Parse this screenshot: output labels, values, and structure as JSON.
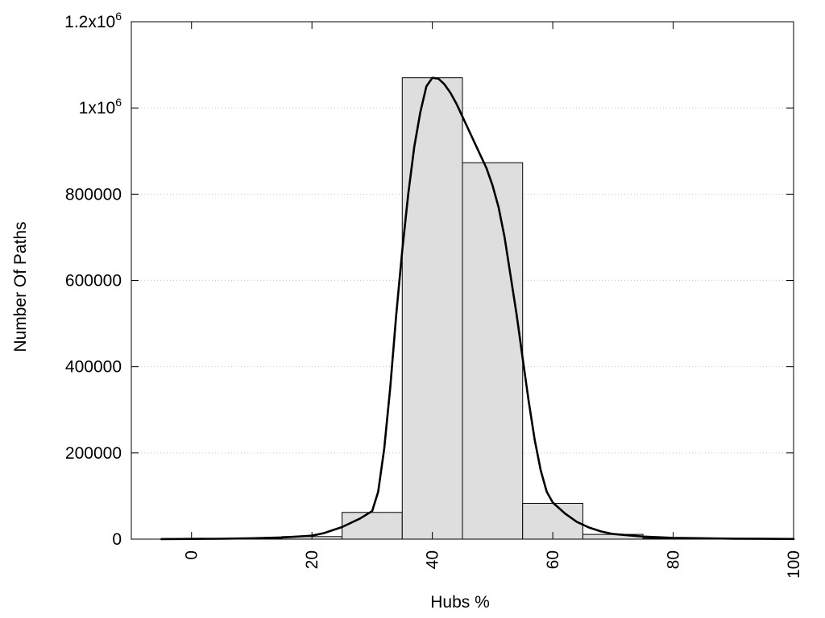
{
  "chart_data": {
    "type": "bar",
    "title": "",
    "xlabel": "Hubs %",
    "ylabel": "Number Of Paths",
    "xlim": [
      -10,
      100
    ],
    "ylim": [
      0,
      1200000
    ],
    "grid": true,
    "x_ticks": [
      {
        "value": 0,
        "label": "0"
      },
      {
        "value": 20,
        "label": "20"
      },
      {
        "value": 40,
        "label": "40"
      },
      {
        "value": 60,
        "label": "60"
      },
      {
        "value": 80,
        "label": "80"
      },
      {
        "value": 100,
        "label": "100"
      }
    ],
    "y_ticks": [
      {
        "value": 0,
        "label": "0"
      },
      {
        "value": 200000,
        "label": "200000"
      },
      {
        "value": 400000,
        "label": "400000"
      },
      {
        "value": 600000,
        "label": "600000"
      },
      {
        "value": 800000,
        "label": "800000"
      },
      {
        "value": 1000000,
        "label": "1x10",
        "sup": "6"
      },
      {
        "value": 1200000,
        "label": "1.2x10",
        "sup": "6"
      }
    ],
    "bins": [
      {
        "center": 0,
        "width": 10,
        "value": 1500
      },
      {
        "center": 10,
        "width": 10,
        "value": 1000
      },
      {
        "center": 20,
        "width": 10,
        "value": 6000
      },
      {
        "center": 30,
        "width": 10,
        "value": 62000
      },
      {
        "center": 40,
        "width": 10,
        "value": 1070000
      },
      {
        "center": 50,
        "width": 10,
        "value": 873000
      },
      {
        "center": 60,
        "width": 10,
        "value": 83000
      },
      {
        "center": 70,
        "width": 10,
        "value": 11000
      },
      {
        "center": 80,
        "width": 10,
        "value": 2000
      },
      {
        "center": 90,
        "width": 10,
        "value": 1000
      },
      {
        "center": 100,
        "width": 10,
        "value": 500
      }
    ],
    "curve": {
      "x": [
        -5,
        0,
        5,
        10,
        15,
        20,
        22,
        25,
        28,
        30,
        31,
        32,
        33,
        34,
        35,
        36,
        37,
        38,
        39,
        40,
        41,
        42,
        43,
        44,
        45,
        46,
        47,
        48,
        49,
        50,
        51,
        52,
        53,
        54,
        55,
        56,
        57,
        58,
        59,
        60,
        62,
        64,
        66,
        68,
        70,
        75,
        80,
        85,
        90,
        95,
        100
      ],
      "y": [
        0,
        500,
        1000,
        2000,
        4000,
        8000,
        14000,
        28000,
        48000,
        65000,
        110000,
        210000,
        350000,
        520000,
        670000,
        800000,
        910000,
        990000,
        1050000,
        1070000,
        1068000,
        1055000,
        1035000,
        1010000,
        980000,
        950000,
        920000,
        890000,
        860000,
        820000,
        770000,
        700000,
        610000,
        520000,
        420000,
        320000,
        230000,
        160000,
        110000,
        85000,
        60000,
        40000,
        27000,
        18000,
        12000,
        6000,
        3000,
        2000,
        1200,
        700,
        300
      ]
    },
    "bar_color": "#dedede",
    "bar_edge_color": "#000000",
    "curve_color": "#000000",
    "grid_color": "#c8c8c8"
  }
}
